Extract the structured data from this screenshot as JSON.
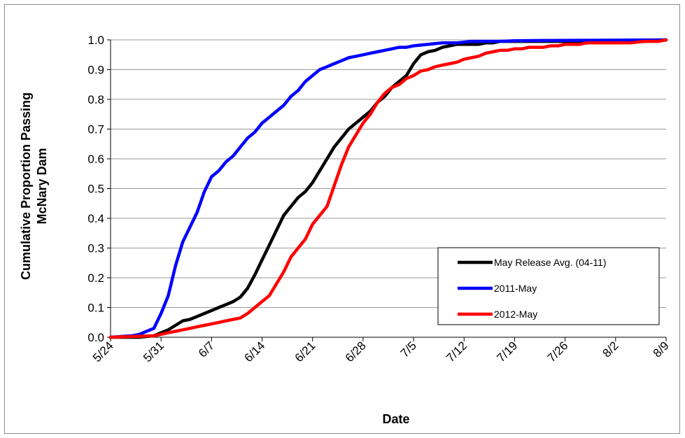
{
  "chart_data": {
    "type": "line",
    "title": "",
    "xlabel": "Date",
    "ylabel_lines": [
      "Cumulative Proportion Passing",
      "McNary Dam"
    ],
    "x_ticks": [
      "5/24",
      "5/31",
      "6/7",
      "6/14",
      "6/21",
      "6/28",
      "7/5",
      "7/12",
      "7/19",
      "7/26",
      "8/2",
      "8/9"
    ],
    "x_tick_day": [
      0,
      7,
      14,
      21,
      28,
      35,
      42,
      49,
      56,
      63,
      70,
      77
    ],
    "y_ticks": [
      "0.0",
      "0.1",
      "0.2",
      "0.3",
      "0.4",
      "0.5",
      "0.6",
      "0.7",
      "0.8",
      "0.9",
      "1.0"
    ],
    "xlim_day": [
      0,
      77
    ],
    "ylim": [
      0,
      1
    ],
    "grid": "horizontal",
    "legend_position": "bottom-right",
    "series": [
      {
        "name": "May Release Avg. (04-11)",
        "color": "#000000",
        "x": [
          0,
          4,
          6,
          7,
          8,
          9,
          10,
          11,
          12,
          13,
          14,
          15,
          16,
          17,
          18,
          19,
          20,
          21,
          22,
          23,
          24,
          25,
          26,
          27,
          28,
          29,
          30,
          31,
          32,
          33,
          34,
          35,
          36,
          37,
          38,
          39,
          40,
          41,
          42,
          43,
          44,
          45,
          46,
          47,
          48,
          49,
          50,
          51,
          52,
          53,
          54,
          55,
          56,
          57,
          58,
          60,
          62,
          64,
          66,
          68,
          70,
          72,
          74,
          77
        ],
        "y": [
          0.0,
          0.0,
          0.005,
          0.015,
          0.025,
          0.04,
          0.055,
          0.06,
          0.07,
          0.08,
          0.09,
          0.1,
          0.11,
          0.12,
          0.135,
          0.165,
          0.21,
          0.26,
          0.31,
          0.36,
          0.41,
          0.44,
          0.47,
          0.49,
          0.52,
          0.56,
          0.6,
          0.64,
          0.67,
          0.7,
          0.72,
          0.74,
          0.76,
          0.79,
          0.81,
          0.84,
          0.86,
          0.88,
          0.92,
          0.95,
          0.96,
          0.965,
          0.975,
          0.98,
          0.985,
          0.985,
          0.985,
          0.985,
          0.99,
          0.99,
          0.995,
          0.995,
          0.995,
          0.995,
          0.995,
          0.995,
          0.995,
          0.995,
          0.995,
          0.995,
          0.995,
          0.995,
          0.995,
          1.0
        ]
      },
      {
        "name": "2011-May",
        "color": "#0000ff",
        "x": [
          0,
          3,
          4,
          5,
          6,
          7,
          8,
          9,
          10,
          11,
          12,
          13,
          14,
          15,
          16,
          17,
          18,
          19,
          20,
          21,
          22,
          23,
          24,
          25,
          26,
          27,
          28,
          29,
          30,
          31,
          32,
          33,
          34,
          35,
          36,
          37,
          38,
          39,
          40,
          41,
          42,
          44,
          46,
          48,
          50,
          52,
          54,
          56,
          60,
          77
        ],
        "y": [
          0.0,
          0.005,
          0.01,
          0.02,
          0.03,
          0.08,
          0.14,
          0.24,
          0.32,
          0.37,
          0.42,
          0.49,
          0.54,
          0.56,
          0.59,
          0.61,
          0.64,
          0.67,
          0.69,
          0.72,
          0.74,
          0.76,
          0.78,
          0.81,
          0.83,
          0.86,
          0.88,
          0.9,
          0.91,
          0.92,
          0.93,
          0.94,
          0.945,
          0.95,
          0.955,
          0.96,
          0.965,
          0.97,
          0.975,
          0.975,
          0.98,
          0.985,
          0.99,
          0.99,
          0.995,
          0.995,
          0.995,
          0.997,
          0.998,
          1.0
        ]
      },
      {
        "name": "2012-May",
        "color": "#ff0000",
        "x": [
          0,
          6,
          7,
          8,
          9,
          10,
          11,
          12,
          13,
          14,
          15,
          16,
          17,
          18,
          19,
          20,
          21,
          22,
          23,
          24,
          25,
          26,
          27,
          28,
          29,
          30,
          31,
          32,
          33,
          34,
          35,
          36,
          37,
          38,
          39,
          40,
          41,
          42,
          43,
          44,
          45,
          46,
          47,
          48,
          49,
          50,
          51,
          52,
          53,
          54,
          55,
          56,
          57,
          58,
          59,
          60,
          61,
          62,
          63,
          64,
          65,
          66,
          67,
          68,
          69,
          70,
          72,
          74,
          76,
          77
        ],
        "y": [
          0.0,
          0.005,
          0.01,
          0.015,
          0.02,
          0.025,
          0.03,
          0.035,
          0.04,
          0.045,
          0.05,
          0.055,
          0.06,
          0.065,
          0.08,
          0.1,
          0.12,
          0.14,
          0.18,
          0.22,
          0.27,
          0.3,
          0.33,
          0.38,
          0.41,
          0.44,
          0.51,
          0.58,
          0.64,
          0.68,
          0.72,
          0.75,
          0.79,
          0.82,
          0.84,
          0.85,
          0.87,
          0.88,
          0.895,
          0.9,
          0.91,
          0.915,
          0.92,
          0.925,
          0.935,
          0.94,
          0.945,
          0.955,
          0.96,
          0.965,
          0.965,
          0.97,
          0.97,
          0.975,
          0.975,
          0.975,
          0.98,
          0.98,
          0.985,
          0.985,
          0.985,
          0.99,
          0.99,
          0.99,
          0.99,
          0.99,
          0.99,
          0.995,
          0.995,
          1.0
        ]
      }
    ]
  }
}
